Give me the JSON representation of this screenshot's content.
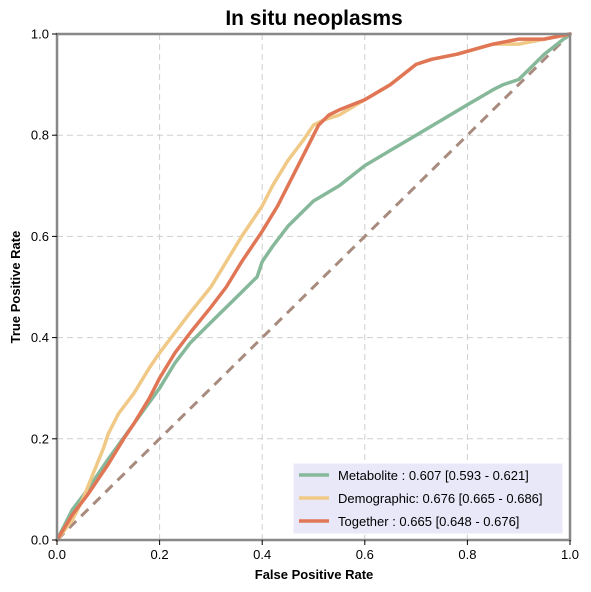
{
  "chart_data": {
    "type": "line",
    "title": "In situ neoplasms",
    "xlabel": "False Positive Rate",
    "ylabel": "True Positive Rate",
    "xlim": [
      0,
      1
    ],
    "ylim": [
      0,
      1
    ],
    "xticks": [
      "0.0",
      "0.2",
      "0.4",
      "0.6",
      "0.8",
      "1.0"
    ],
    "yticks": [
      "0.0",
      "0.2",
      "0.4",
      "0.6",
      "0.8",
      "1.0"
    ],
    "grid": true,
    "legend_position": "bottom-right",
    "chance_line": {
      "x": [
        0,
        1
      ],
      "y": [
        0,
        1
      ],
      "color": "#a88b7e",
      "style": "dashed"
    },
    "series": [
      {
        "name": "Metabolite",
        "legend_label": "Metabolite     : 0.607 [0.593 - 0.621]",
        "color": "#86b89a",
        "x": [
          0,
          0.03,
          0.06,
          0.1,
          0.15,
          0.2,
          0.23,
          0.26,
          0.3,
          0.33,
          0.36,
          0.39,
          0.4,
          0.42,
          0.45,
          0.48,
          0.5,
          0.55,
          0.6,
          0.65,
          0.7,
          0.75,
          0.8,
          0.85,
          0.87,
          0.9,
          0.92,
          0.95,
          1.0
        ],
        "y": [
          0,
          0.06,
          0.1,
          0.16,
          0.23,
          0.3,
          0.35,
          0.39,
          0.43,
          0.46,
          0.49,
          0.52,
          0.55,
          0.58,
          0.62,
          0.65,
          0.67,
          0.7,
          0.74,
          0.77,
          0.8,
          0.83,
          0.86,
          0.89,
          0.9,
          0.91,
          0.93,
          0.96,
          1.0
        ]
      },
      {
        "name": "Demographic",
        "legend_label": "Demographic: 0.676 [0.665 - 0.686]",
        "color": "#f0c987",
        "x": [
          0,
          0.03,
          0.05,
          0.07,
          0.09,
          0.1,
          0.12,
          0.15,
          0.18,
          0.2,
          0.23,
          0.26,
          0.3,
          0.33,
          0.36,
          0.4,
          0.42,
          0.45,
          0.48,
          0.5,
          0.52,
          0.55,
          0.6,
          0.65,
          0.7,
          0.73,
          0.78,
          0.85,
          0.9,
          0.95,
          1.0
        ],
        "y": [
          0,
          0.04,
          0.08,
          0.13,
          0.18,
          0.21,
          0.25,
          0.29,
          0.34,
          0.37,
          0.41,
          0.45,
          0.5,
          0.55,
          0.6,
          0.66,
          0.7,
          0.75,
          0.79,
          0.82,
          0.83,
          0.84,
          0.87,
          0.9,
          0.94,
          0.95,
          0.96,
          0.98,
          0.98,
          0.99,
          1.0
        ]
      },
      {
        "name": "Together",
        "legend_label": "Together       : 0.665 [0.648 - 0.676]",
        "color": "#e07655",
        "x": [
          0,
          0.03,
          0.06,
          0.1,
          0.13,
          0.15,
          0.18,
          0.2,
          0.23,
          0.26,
          0.3,
          0.33,
          0.36,
          0.4,
          0.43,
          0.46,
          0.49,
          0.51,
          0.53,
          0.55,
          0.6,
          0.65,
          0.7,
          0.73,
          0.78,
          0.85,
          0.9,
          0.95,
          1.0
        ],
        "y": [
          0,
          0.05,
          0.09,
          0.15,
          0.2,
          0.23,
          0.28,
          0.32,
          0.37,
          0.41,
          0.46,
          0.5,
          0.55,
          0.61,
          0.66,
          0.72,
          0.78,
          0.82,
          0.84,
          0.85,
          0.87,
          0.9,
          0.94,
          0.95,
          0.96,
          0.98,
          0.99,
          0.99,
          1.0
        ]
      }
    ]
  }
}
